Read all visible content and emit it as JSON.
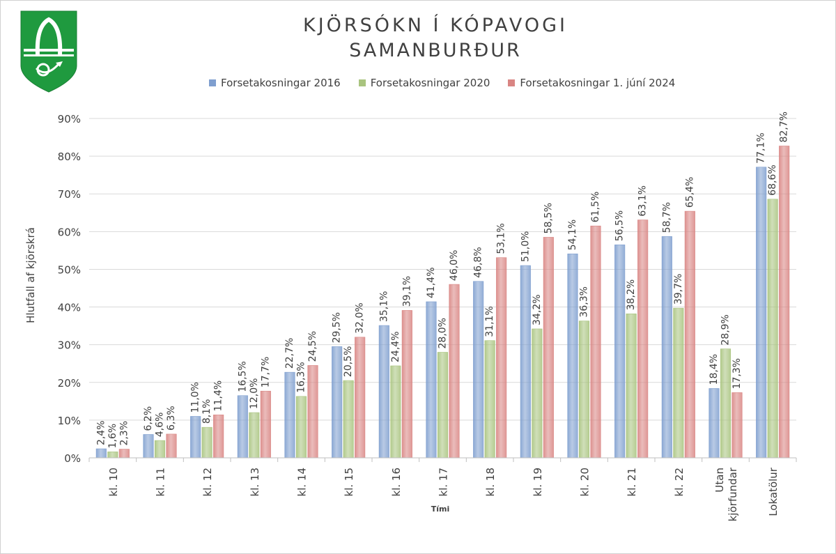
{
  "chart_data": {
    "type": "bar",
    "title": "KJÖRSÓKN Í KÓPAVOGI",
    "subtitle": "SAMANBURÐUR",
    "xlabel": "Tími",
    "ylabel": "Hlutfall af kjörskrá",
    "ylim": [
      0,
      90
    ],
    "yticks": [
      "0%",
      "10%",
      "20%",
      "30%",
      "40%",
      "50%",
      "60%",
      "70%",
      "80%",
      "90%"
    ],
    "grid": true,
    "legend_position": "top",
    "categories": [
      "kl. 10",
      "kl. 11",
      "kl. 12",
      "kl. 13",
      "kl. 14",
      "kl. 15",
      "kl. 16",
      "kl. 17",
      "kl. 18",
      "kl. 19",
      "kl. 20",
      "kl. 21",
      "kl. 22",
      "Utan kjörfundar",
      "Lokatölur"
    ],
    "series": [
      {
        "name": "Forsetakosningar 2016",
        "color": "#7f9fcf",
        "values": [
          2.4,
          6.2,
          11.0,
          16.5,
          22.7,
          29.5,
          35.1,
          41.4,
          46.8,
          51.0,
          54.1,
          56.5,
          58.7,
          18.4,
          77.1
        ],
        "labels": [
          "2,4%",
          "6,2%",
          "11,0%",
          "16,5%",
          "22,7%",
          "29,5%",
          "35,1%",
          "41,4%",
          "46,8%",
          "51,0%",
          "54,1%",
          "56,5%",
          "58,7%",
          "18,4%",
          "77,1%"
        ]
      },
      {
        "name": "Forsetakosningar 2020",
        "color": "#a9c47f",
        "values": [
          1.6,
          4.6,
          8.1,
          12.0,
          16.3,
          20.5,
          24.4,
          28.0,
          31.1,
          34.2,
          36.3,
          38.2,
          39.7,
          28.9,
          68.6
        ],
        "labels": [
          "1,6%",
          "4,6%",
          "8,1%",
          "12,0%",
          "16,3%",
          "20,5%",
          "24,4%",
          "28,0%",
          "31,1%",
          "34,2%",
          "36,3%",
          "38,2%",
          "39,7%",
          "28,9%",
          "68,6%"
        ]
      },
      {
        "name": "Forsetakosningar 1. júní 2024",
        "color": "#d98583",
        "values": [
          2.3,
          6.3,
          11.4,
          17.7,
          24.5,
          32.0,
          39.1,
          46.0,
          53.1,
          58.5,
          61.5,
          63.1,
          65.4,
          17.3,
          82.7
        ],
        "labels": [
          "2,3%",
          "6,3%",
          "11,4%",
          "17,7%",
          "24,5%",
          "32,0%",
          "39,1%",
          "46,0%",
          "53,1%",
          "58,5%",
          "61,5%",
          "63,1%",
          "65,4%",
          "17,3%",
          "82,7%"
        ]
      }
    ]
  },
  "logo": {
    "name": "kopavogur-coat-of-arms-icon",
    "color_green": "#1f9a3f",
    "color_white": "#ffffff"
  }
}
